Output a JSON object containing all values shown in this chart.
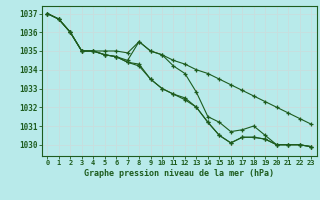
{
  "title": "Graphe pression niveau de la mer (hPa)",
  "background_color": "#b8eaea",
  "grid_color": "#c8dede",
  "line_color": "#1e5c1e",
  "xlim": [
    -0.5,
    23.5
  ],
  "ylim": [
    1029.4,
    1037.4
  ],
  "yticks": [
    1030,
    1031,
    1032,
    1033,
    1034,
    1035,
    1036,
    1037
  ],
  "xticks": [
    0,
    1,
    2,
    3,
    4,
    5,
    6,
    7,
    8,
    9,
    10,
    11,
    12,
    13,
    14,
    15,
    16,
    17,
    18,
    19,
    20,
    21,
    22,
    23
  ],
  "series": [
    [
      1037.0,
      1036.7,
      1036.0,
      1035.0,
      1035.0,
      1035.0,
      1035.0,
      1034.9,
      1035.5,
      1035.0,
      1034.8,
      1034.5,
      1034.3,
      1034.0,
      1033.8,
      1033.5,
      1033.2,
      1032.9,
      1032.6,
      1032.3,
      1032.0,
      1031.7,
      1031.4,
      1031.1
    ],
    [
      1037.0,
      1036.7,
      1036.0,
      1035.0,
      1035.0,
      1034.8,
      1034.7,
      1034.5,
      1035.5,
      1035.0,
      1034.8,
      1034.2,
      1033.8,
      1032.8,
      1031.5,
      1031.2,
      1030.7,
      1030.8,
      1031.0,
      1030.5,
      1030.0,
      1030.0,
      1030.0,
      1029.9
    ],
    [
      1037.0,
      1036.7,
      1036.0,
      1035.0,
      1035.0,
      1034.8,
      1034.7,
      1034.4,
      1034.3,
      1033.5,
      1033.0,
      1032.7,
      1032.5,
      1032.0,
      1031.2,
      1030.5,
      1030.1,
      1030.4,
      1030.4,
      1030.3,
      1030.0,
      1030.0,
      1030.0,
      1029.9
    ],
    [
      1037.0,
      1036.7,
      1036.0,
      1035.0,
      1035.0,
      1034.8,
      1034.7,
      1034.4,
      1034.2,
      1033.5,
      1033.0,
      1032.7,
      1032.4,
      1032.0,
      1031.2,
      1030.5,
      1030.1,
      1030.4,
      1030.4,
      1030.3,
      1030.0,
      1030.0,
      1030.0,
      1029.9
    ]
  ]
}
